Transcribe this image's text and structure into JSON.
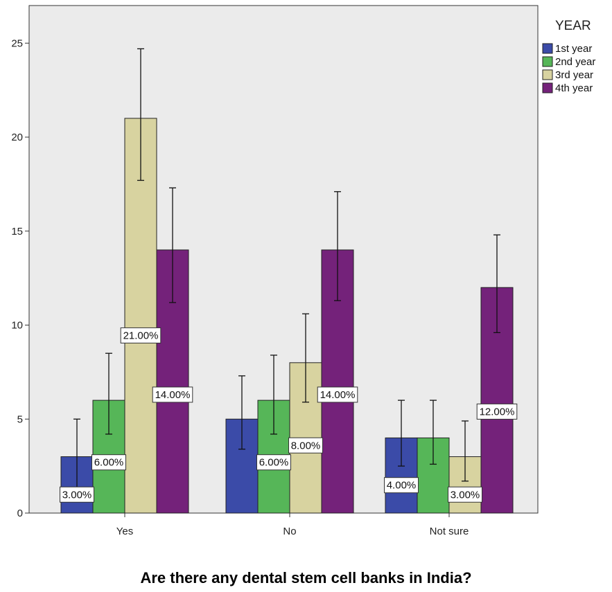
{
  "chart_data": {
    "type": "bar",
    "title": "Are there any dental stem cell banks in India?",
    "xlabel": "",
    "ylabel": "",
    "categories": [
      "Yes",
      "No",
      "Not sure"
    ],
    "ylim": [
      0,
      27
    ],
    "yticks": [
      0,
      5,
      10,
      15,
      20,
      25
    ],
    "grid": false,
    "background": "#ebebeb",
    "legend": {
      "title": "YEAR",
      "placement": "right"
    },
    "series": [
      {
        "name": "1st year",
        "color": "#3b4ba8",
        "values": [
          3,
          5,
          4
        ],
        "error_low": [
          1.2,
          3.4,
          2.5
        ],
        "error_high": [
          5.0,
          7.3,
          6.0
        ],
        "labels": [
          "3.00%",
          "",
          "4.00%"
        ]
      },
      {
        "name": "2nd year",
        "color": "#56b658",
        "values": [
          6,
          6,
          4
        ],
        "error_low": [
          4.2,
          4.2,
          2.6
        ],
        "error_high": [
          8.5,
          8.4,
          6.0
        ],
        "labels": [
          "6.00%",
          "6.00%",
          ""
        ]
      },
      {
        "name": "3rd year",
        "color": "#d8d3a0",
        "values": [
          21,
          8,
          3
        ],
        "error_low": [
          17.7,
          5.9,
          1.7
        ],
        "error_high": [
          24.7,
          10.6,
          4.9
        ],
        "labels": [
          "21.00%",
          "8.00%",
          "3.00%"
        ]
      },
      {
        "name": "4th year",
        "color": "#74227a",
        "values": [
          14,
          14,
          12
        ],
        "error_low": [
          11.2,
          11.3,
          9.6
        ],
        "error_high": [
          17.3,
          17.1,
          14.8
        ],
        "labels": [
          "14.00%",
          "14.00%",
          "12.00%"
        ]
      }
    ]
  }
}
